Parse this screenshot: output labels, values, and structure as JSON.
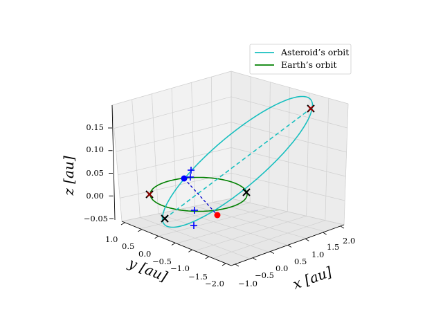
{
  "chart_data": {
    "type": "line-3d",
    "title": "",
    "legend": {
      "position": "top-right",
      "entries": [
        {
          "label": "Asteroid’s orbit",
          "color": "#17bfbf"
        },
        {
          "label": "Earth’s orbit",
          "color": "#008000"
        }
      ]
    },
    "axes": {
      "x": {
        "label": "x [au]",
        "range": [
          -1.0,
          2.0
        ],
        "ticks": [
          -1.0,
          -0.5,
          0.0,
          0.5,
          1.0,
          1.5,
          2.0
        ],
        "tick_labels": [
          "−1.0",
          "−0.5",
          "0.0",
          "0.5",
          "1.0",
          "1.5",
          "2.0"
        ]
      },
      "y": {
        "label": "y [au]",
        "range": [
          -2.0,
          1.0
        ],
        "ticks": [
          -2.0,
          -1.5,
          -1.0,
          -0.5,
          0.0,
          0.5,
          1.0
        ],
        "tick_labels": [
          "−2.0",
          "−1.5",
          "−1.0",
          "−0.5",
          "0.0",
          "0.5",
          "1.0"
        ]
      },
      "z": {
        "label": "z [au]",
        "range": [
          -0.06,
          0.19
        ],
        "ticks": [
          -0.05,
          0.0,
          0.05,
          0.1,
          0.15
        ],
        "tick_labels": [
          "−0.05",
          "0.00",
          "0.05",
          "0.10",
          "0.15"
        ]
      }
    },
    "grid": true,
    "view": {
      "elevation_deg": 20,
      "azimuth_deg": -135
    },
    "series": [
      {
        "name": "Asteroid’s orbit",
        "kind": "ellipse",
        "color": "#17bfbf",
        "a": 1.45,
        "e": 0.69,
        "inclination_deg": 6.5,
        "node_longitude_deg": 30,
        "perihelion_arg_deg": 55
      },
      {
        "name": "Earth’s orbit",
        "kind": "circle",
        "color": "#008000",
        "radius": 1.0,
        "z": 0
      }
    ],
    "markers": {
      "asteroid_position": {
        "color": "#ff0000",
        "x": -0.45,
        "y": -0.92,
        "z": 0.0
      },
      "earth_position": {
        "color": "#0000ff",
        "x": 0.75,
        "y": 0.72,
        "z": 0.0
      },
      "black_crosses": [
        {
          "x": 1.0,
          "y": -1.0,
          "z": 0.0
        },
        {
          "x": -1.02,
          "y": 0.0,
          "z": 0.0
        },
        {
          "x": 0.0,
          "y": 1.0,
          "z": 0.0
        }
      ],
      "dark_red_crosses": [
        {
          "x": 1.0,
          "y": -1.0,
          "z": 0.0
        },
        {
          "x": 2.0,
          "y": -0.08,
          "z": 0.15
        }
      ],
      "blue_plus": [
        {
          "x": 0.82,
          "y": 0.05,
          "z": 0.06
        },
        {
          "x": 0.82,
          "y": 0.05,
          "z": 0.05
        },
        {
          "x": -0.02,
          "y": -0.08,
          "z": 0.0
        },
        {
          "x": -0.42,
          "y": -0.6,
          "z": 0.0
        }
      ],
      "line_of_nodes": [
        {
          "x": -1.02,
          "y": 0.0,
          "z": 0.0
        },
        {
          "x": 2.0,
          "y": -0.08,
          "z": 0.15
        }
      ]
    }
  }
}
